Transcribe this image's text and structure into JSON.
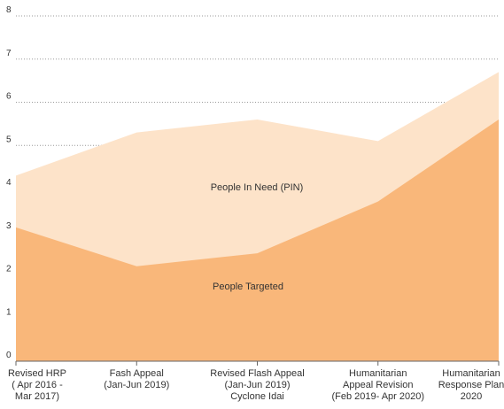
{
  "chart_data": {
    "type": "area",
    "categories": [
      [
        "Revised HRP",
        "( Apr 2016 -",
        "Mar 2017)"
      ],
      [
        "Fash Appeal",
        "(Jan-Jun 2019)"
      ],
      [
        "Revised Flash Appeal",
        "(Jan-Jun 2019)",
        "Cyclone Idai"
      ],
      [
        "Humanitarian",
        "Appeal Revision",
        "(Feb 2019- Apr 2020)"
      ],
      [
        "Humanitarian",
        "Response Plan",
        "2020"
      ]
    ],
    "series": [
      {
        "name": "People In Need (PIN)",
        "values": [
          4.3,
          5.3,
          5.6,
          5.1,
          6.7
        ],
        "color": "#fde3c9"
      },
      {
        "name": "People Targeted",
        "values": [
          3.1,
          2.2,
          2.5,
          3.7,
          5.6
        ],
        "color": "#f9b77a"
      }
    ],
    "ylim": [
      0,
      8
    ],
    "yticks": [
      0,
      1,
      2,
      3,
      4,
      5,
      6,
      7,
      8
    ],
    "grid": true,
    "legend": "none"
  }
}
